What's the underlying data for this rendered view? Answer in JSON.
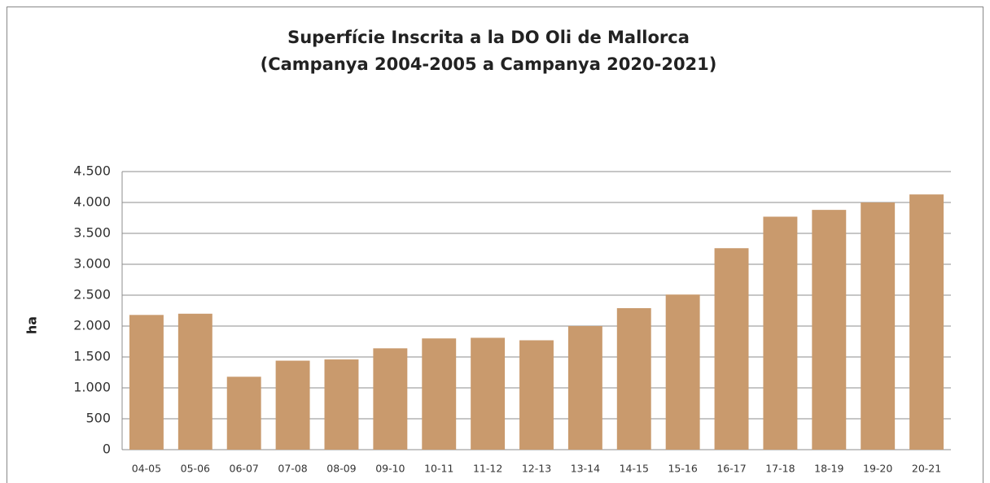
{
  "chart_data": {
    "type": "bar",
    "title": "Superfície Inscrita a la DO Oli de Mallorca",
    "subtitle": "(Campanya 2004-2005 a Campanya 2020-2021)",
    "y_label": "ha",
    "categories": [
      "04-05",
      "05-06",
      "06-07",
      "07-08",
      "08-09",
      "09-10",
      "10-11",
      "11-12",
      "12-13",
      "13-14",
      "14-15",
      "15-16",
      "16-17",
      "17-18",
      "18-19",
      "19-20",
      "20-21"
    ],
    "values": [
      2180,
      2200,
      1180,
      1440,
      1460,
      1640,
      1800,
      1810,
      1770,
      2000,
      2290,
      2510,
      3260,
      3770,
      3880,
      4000,
      4130
    ],
    "color": "#c99a6d",
    "ylim": [
      0,
      4500
    ],
    "yticks": [
      0,
      500,
      {
        "value": 1000,
        "label": "1.000"
      },
      {
        "value": 1500,
        "label": "1.500"
      },
      {
        "value": 2000,
        "label": "2.000"
      },
      {
        "value": 2500,
        "label": "2.500"
      },
      {
        "value": 3000,
        "label": "3.000"
      },
      {
        "value": 3500,
        "label": "3.500"
      },
      {
        "value": 4000,
        "label": "4.000"
      },
      {
        "value": 4500,
        "label": "4.500"
      }
    ],
    "grid": true
  }
}
